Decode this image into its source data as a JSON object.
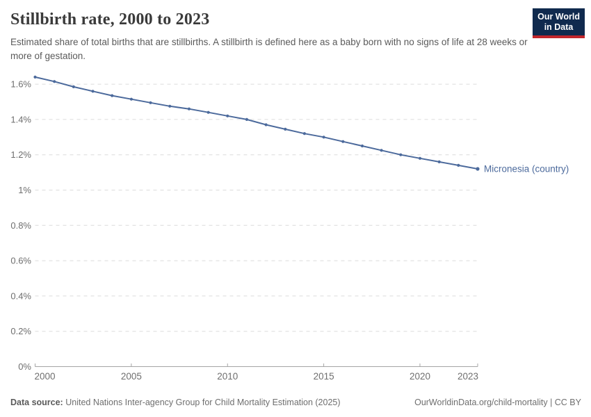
{
  "header": {
    "title": "Stillbirth rate, 2000 to 2023",
    "subtitle": "Estimated share of total births that are stillbirths. A stillbirth is defined here as a baby born with no signs of life at 28 weeks or more of gestation.",
    "logo": {
      "line1": "Our World",
      "line2": "in Data"
    }
  },
  "chart_data": {
    "type": "line",
    "title": "Stillbirth rate, 2000 to 2023",
    "unit": "%",
    "x": [
      2000,
      2001,
      2002,
      2003,
      2004,
      2005,
      2006,
      2007,
      2008,
      2009,
      2010,
      2011,
      2012,
      2013,
      2014,
      2015,
      2016,
      2017,
      2018,
      2019,
      2020,
      2021,
      2022,
      2023
    ],
    "series": [
      {
        "name": "Micronesia (country)",
        "color": "#4C6A9C",
        "values": [
          1.64,
          1.615,
          1.585,
          1.56,
          1.535,
          1.515,
          1.495,
          1.475,
          1.46,
          1.44,
          1.42,
          1.4,
          1.37,
          1.345,
          1.32,
          1.3,
          1.275,
          1.25,
          1.225,
          1.2,
          1.18,
          1.16,
          1.14,
          1.12
        ]
      }
    ],
    "xlim": [
      2000,
      2023
    ],
    "ylim": [
      0,
      1.65
    ],
    "x_ticks": [
      2000,
      2005,
      2010,
      2015,
      2020,
      2023
    ],
    "y_ticks": [
      {
        "value": 0,
        "label": "0%"
      },
      {
        "value": 0.2,
        "label": "0.2%"
      },
      {
        "value": 0.4,
        "label": "0.4%"
      },
      {
        "value": 0.6,
        "label": "0.6%"
      },
      {
        "value": 0.8,
        "label": "0.8%"
      },
      {
        "value": 1,
        "label": "1%"
      },
      {
        "value": 1.2,
        "label": "1.2%"
      },
      {
        "value": 1.4,
        "label": "1.4%"
      },
      {
        "value": 1.6,
        "label": "1.6%"
      }
    ],
    "grid": "horizontal-dashed",
    "legend": "end-of-line-label"
  },
  "footer": {
    "datasource_label": "Data source:",
    "datasource": "United Nations Inter-agency Group for Child Mortality Estimation (2025)",
    "link": "OurWorldinData.org/child-mortality | CC BY"
  },
  "colors": {
    "line": "#4C6A9C",
    "entity_label": "#4C6A9C",
    "grid": "#DBDBDB",
    "axis": "#A5A5A5",
    "tick_text": "#6E6E6E",
    "title_text": "#3A3A3A",
    "subtitle_text": "#5A5A5A",
    "footer_text": "#6E6E6E",
    "footer_label_text": "#5A5A5A",
    "logo_background": "#102A4E",
    "logo_accent_red": "#C2262C"
  }
}
